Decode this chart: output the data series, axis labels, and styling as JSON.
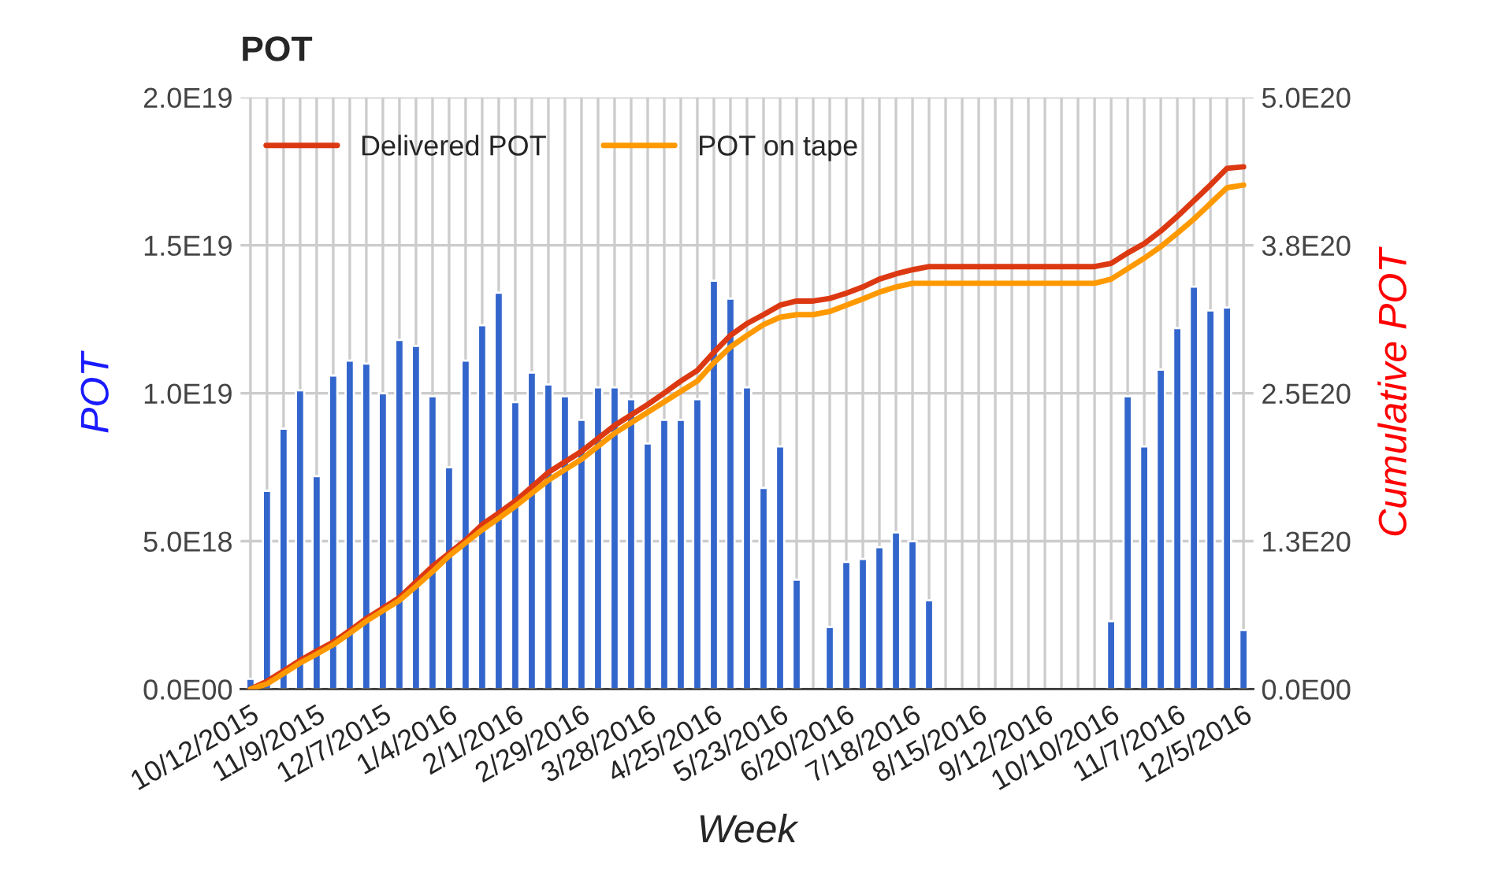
{
  "chart_data": {
    "type": "bar",
    "title": "POT",
    "xlabel": "Week",
    "ylabel": "POT",
    "y2label": "Cumulative POT",
    "categories": [
      "10/12/2015",
      null,
      null,
      null,
      "11/9/2015",
      null,
      null,
      null,
      "12/7/2015",
      null,
      null,
      null,
      "1/4/2016",
      null,
      null,
      null,
      "2/1/2016",
      null,
      null,
      null,
      "2/29/2016",
      null,
      null,
      null,
      "3/28/2016",
      null,
      null,
      null,
      "4/25/2016",
      null,
      null,
      null,
      "5/23/2016",
      null,
      null,
      null,
      "6/20/2016",
      null,
      null,
      null,
      "7/18/2016",
      null,
      null,
      null,
      "8/15/2016",
      null,
      null,
      null,
      "9/12/2016",
      null,
      null,
      null,
      "10/10/2016",
      null,
      null,
      null,
      "11/7/2016",
      null,
      null,
      null,
      "12/5/2016"
    ],
    "series": [
      {
        "color": "#3366cc",
        "values": [
          3.5e+17,
          6.7e+18,
          8.8e+18,
          1.01e+19,
          7.2e+18,
          1.06e+19,
          1.11e+19,
          1.1e+19,
          1e+19,
          1.18e+19,
          1.16e+19,
          9.9e+18,
          7.5e+18,
          1.11e+19,
          1.23e+19,
          1.34e+19,
          9.7e+18,
          1.07e+19,
          1.03e+19,
          9.9e+18,
          9.1e+18,
          1.02e+19,
          1.02e+19,
          9.8e+18,
          8.3e+18,
          9.1e+18,
          9.1e+18,
          9.8e+18,
          1.38e+19,
          1.32e+19,
          1.02e+19,
          6.8e+18,
          8.2e+18,
          3.7e+18,
          null,
          2.1e+18,
          4.3e+18,
          4.4e+18,
          4.8e+18,
          5.3e+18,
          5e+18,
          3e+18,
          null,
          null,
          null,
          null,
          null,
          null,
          null,
          null,
          null,
          null,
          2.3e+18,
          9.9e+18,
          8.2e+18,
          1.08e+19,
          1.22e+19,
          1.36e+19,
          1.28e+19,
          1.29e+19,
          2e+18
        ]
      },
      {
        "type": "line",
        "axis": "y2",
        "name": "Delivered POT",
        "color": "#dc3912",
        "values": [
          0,
          6.6e+18,
          1.54e+19,
          2.43e+19,
          3.22e+19,
          3.97e+19,
          4.94e+19,
          5.96e+19,
          6.84e+19,
          7.73e+19,
          9.05e+19,
          1.037e+20,
          1.148e+20,
          1.258e+20,
          1.39e+20,
          1.487e+20,
          1.589e+20,
          1.708e+20,
          1.831e+20,
          1.92e+20,
          2.008e+20,
          2.118e+20,
          2.228e+20,
          2.317e+20,
          2.405e+20,
          2.502e+20,
          2.603e+20,
          2.692e+20,
          2.846e+20,
          2.988e+20,
          3.089e+20,
          3.164e+20,
          3.244e+20,
          3.279e+20,
          3.279e+20,
          3.301e+20,
          3.345e+20,
          3.398e+20,
          3.464e+20,
          3.508e+20,
          3.543e+20,
          3.57e+20,
          3.57e+20,
          3.57e+20,
          3.57e+20,
          3.57e+20,
          3.57e+20,
          3.57e+20,
          3.57e+20,
          3.57e+20,
          3.57e+20,
          3.57e+20,
          3.597e+20,
          3.685e+20,
          3.764e+20,
          3.87e+20,
          3.994e+20,
          4.126e+20,
          4.259e+20,
          4.4e+20,
          4.413e+20
        ]
      },
      {
        "type": "line",
        "axis": "y2",
        "name": "POT on tape",
        "color": "#ff9900",
        "values": [
          0,
          4.4e+18,
          1.32e+19,
          2.21e+19,
          2.96e+19,
          3.75e+19,
          4.72e+19,
          5.74e+19,
          6.62e+19,
          7.5e+19,
          8.69e+19,
          9.93e+19,
          1.125e+20,
          1.236e+20,
          1.346e+20,
          1.443e+20,
          1.545e+20,
          1.655e+20,
          1.765e+20,
          1.854e+20,
          1.942e+20,
          2.052e+20,
          2.162e+20,
          2.251e+20,
          2.339e+20,
          2.427e+20,
          2.515e+20,
          2.603e+20,
          2.758e+20,
          2.89e+20,
          2.988e+20,
          3.08e+20,
          3.142e+20,
          3.164e+20,
          3.164e+20,
          3.191e+20,
          3.244e+20,
          3.297e+20,
          3.354e+20,
          3.398e+20,
          3.429e+20,
          3.429e+20,
          3.429e+20,
          3.429e+20,
          3.429e+20,
          3.429e+20,
          3.429e+20,
          3.429e+20,
          3.429e+20,
          3.429e+20,
          3.429e+20,
          3.429e+20,
          3.464e+20,
          3.552e+20,
          3.641e+20,
          3.738e+20,
          3.852e+20,
          3.971e+20,
          4.104e+20,
          4.236e+20,
          4.259e+20
        ]
      }
    ],
    "ylim": [
      0,
      2e+19
    ],
    "yticks": [
      {
        "value": 0,
        "label": "0.0E00"
      },
      {
        "value": 5e+18,
        "label": "5.0E18"
      },
      {
        "value": 1e+19,
        "label": "1.0E19"
      },
      {
        "value": 1.5e+19,
        "label": "1.5E19"
      },
      {
        "value": 2e+19,
        "label": "2.0E19"
      }
    ],
    "y2lim": [
      0,
      5e+20
    ],
    "y2ticks": [
      {
        "value": 0,
        "label": "0.0E00"
      },
      {
        "value": 1.25e+20,
        "label": "1.3E20"
      },
      {
        "value": 2.5e+20,
        "label": "2.5E20"
      },
      {
        "value": 3.75e+20,
        "label": "3.8E20"
      },
      {
        "value": 5e+20,
        "label": "5.0E20"
      }
    ],
    "grid": true,
    "legend": "top left"
  }
}
